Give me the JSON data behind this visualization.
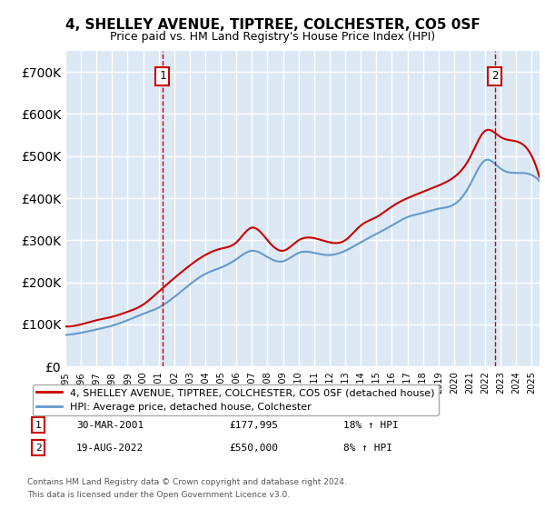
{
  "title": "4, SHELLEY AVENUE, TIPTREE, COLCHESTER, CO5 0SF",
  "subtitle": "Price paid vs. HM Land Registry's House Price Index (HPI)",
  "ylim": [
    0,
    750000
  ],
  "yticks": [
    0,
    100000,
    200000,
    300000,
    400000,
    500000,
    600000,
    700000
  ],
  "ytick_labels": [
    "£0",
    "£100K",
    "£200K",
    "£300K",
    "£400K",
    "£500K",
    "£600K",
    "£700K"
  ],
  "xlim_start": 1995.0,
  "xlim_end": 2025.5,
  "background_color": "#dce9f5",
  "plot_bg": "#dce9f5",
  "grid_color": "#ffffff",
  "sale1_x": 2001.24,
  "sale1_y": 177995,
  "sale1_label": "1",
  "sale1_date": "30-MAR-2001",
  "sale1_price": "£177,995",
  "sale1_hpi": "18% ↑ HPI",
  "sale2_x": 2022.63,
  "sale2_y": 550000,
  "sale2_label": "2",
  "sale2_date": "19-AUG-2022",
  "sale2_price": "£550,000",
  "sale2_hpi": "8% ↑ HPI",
  "line_color_property": "#cc0000",
  "line_color_hpi": "#6699cc",
  "legend_label_property": "4, SHELLEY AVENUE, TIPTREE, COLCHESTER, CO5 0SF (detached house)",
  "legend_label_hpi": "HPI: Average price, detached house, Colchester",
  "footer1": "Contains HM Land Registry data © Crown copyright and database right 2024.",
  "footer2": "This data is licensed under the Open Government Licence v3.0.",
  "xtick_years": [
    1995,
    1996,
    1997,
    1998,
    1999,
    2000,
    2001,
    2002,
    2003,
    2004,
    2005,
    2006,
    2007,
    2008,
    2009,
    2010,
    2011,
    2012,
    2013,
    2014,
    2015,
    2016,
    2017,
    2018,
    2019,
    2020,
    2021,
    2022,
    2023,
    2024,
    2025
  ]
}
